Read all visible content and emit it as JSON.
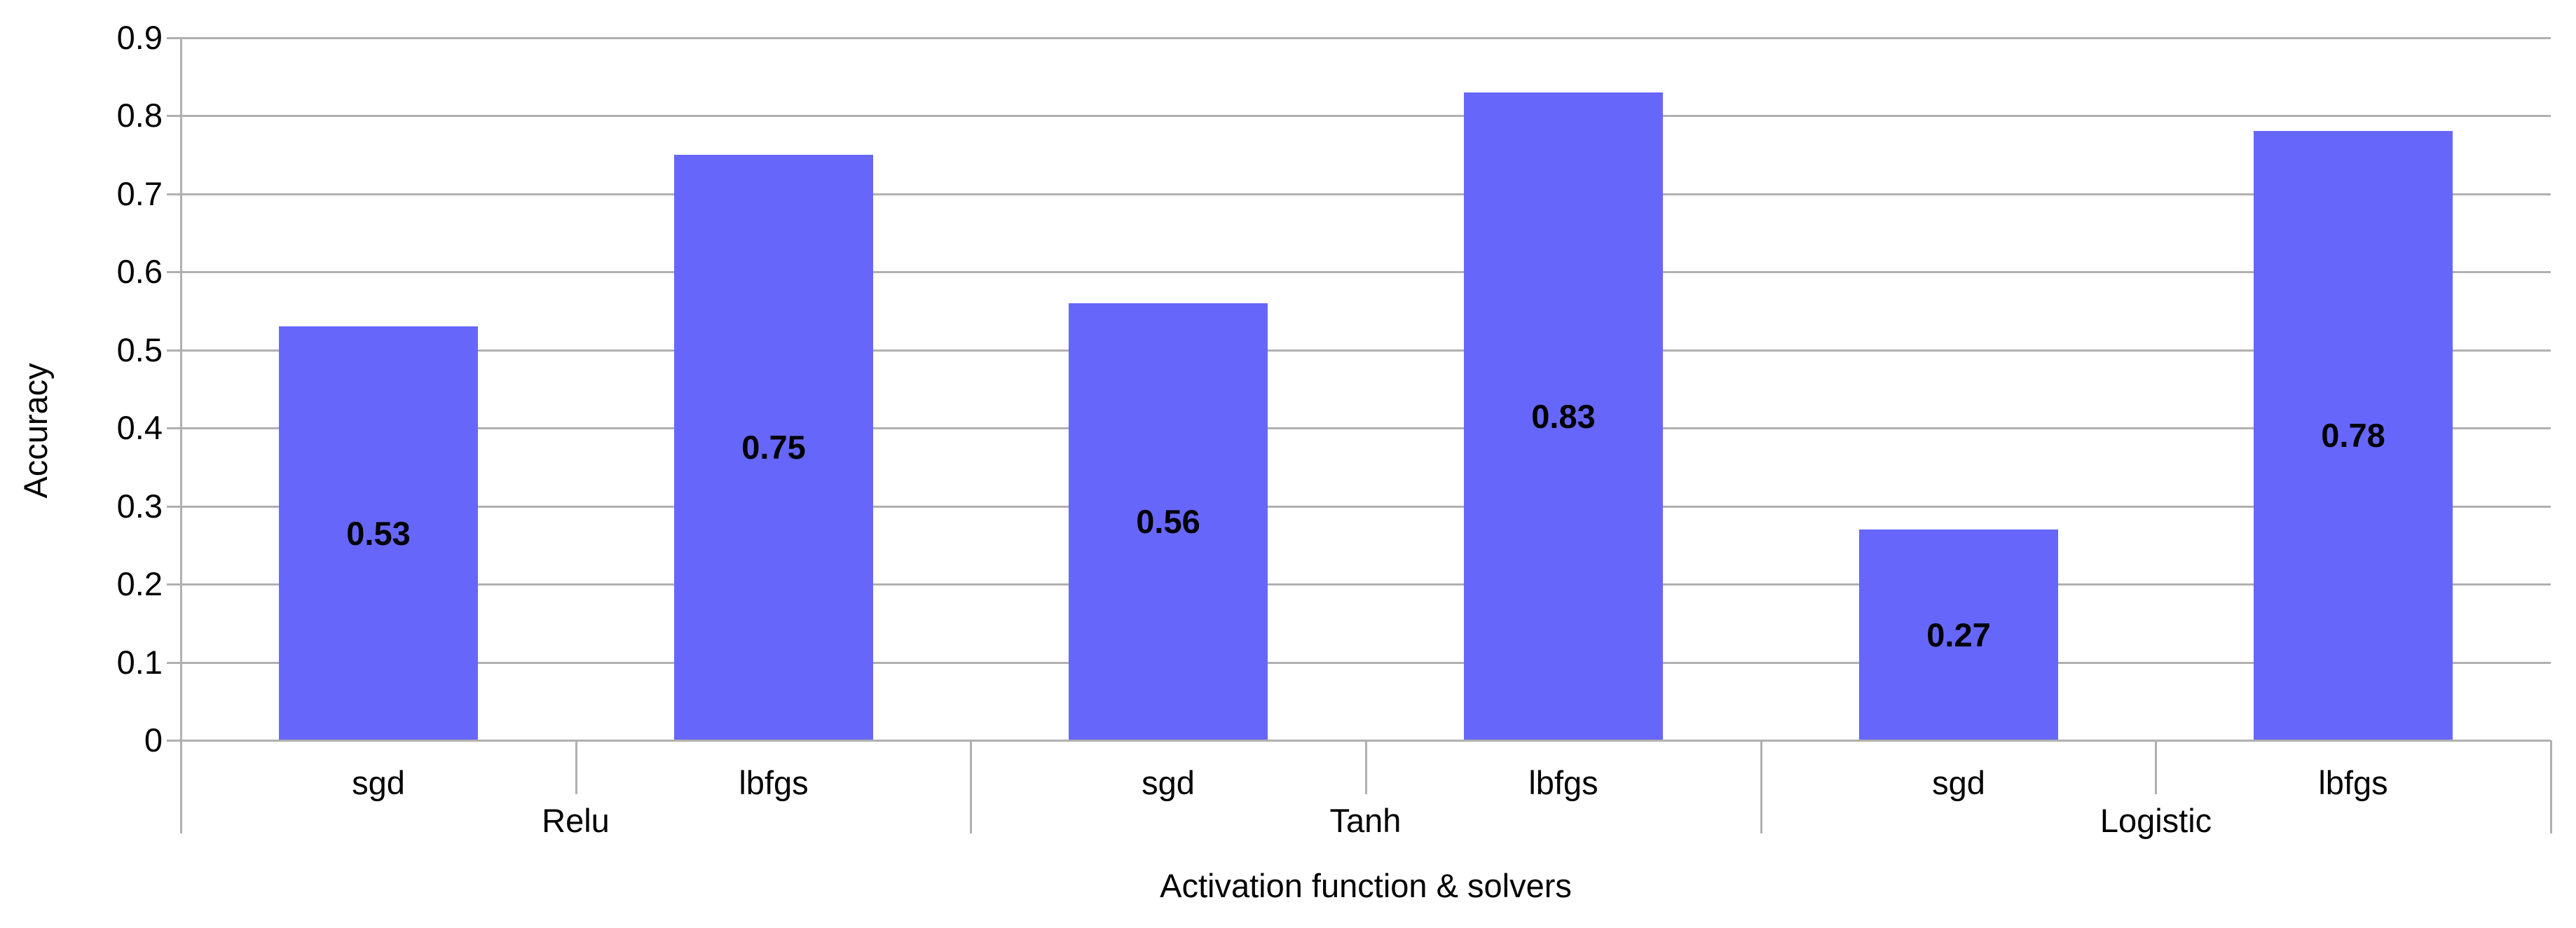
{
  "chart_data": {
    "type": "bar",
    "title": "",
    "xlabel": "Activation function & solvers",
    "ylabel": "Accuracy",
    "groups": [
      "Relu",
      "Tanh",
      "Logistic"
    ],
    "categories": [
      "sgd",
      "lbfgs",
      "sgd",
      "lbfgs",
      "sgd",
      "lbfgs"
    ],
    "series": [
      {
        "name": "Accuracy",
        "values": [
          0.53,
          0.75,
          0.56,
          0.83,
          0.27,
          0.78
        ]
      }
    ],
    "value_labels": [
      "0.53",
      "0.75",
      "0.56",
      "0.83",
      "0.27",
      "0.78"
    ],
    "ylim": [
      0,
      0.9
    ],
    "ytick_step": 0.1,
    "ytick_labels": [
      "0",
      "0.1",
      "0.2",
      "0.3",
      "0.4",
      "0.5",
      "0.6",
      "0.7",
      "0.8",
      "0.9"
    ],
    "grid": "horizontal",
    "legend": "none",
    "colors": {
      "bar": "#6667fa",
      "grid": "#b0b0b0",
      "text": "#000000",
      "background": "#ffffff"
    }
  }
}
